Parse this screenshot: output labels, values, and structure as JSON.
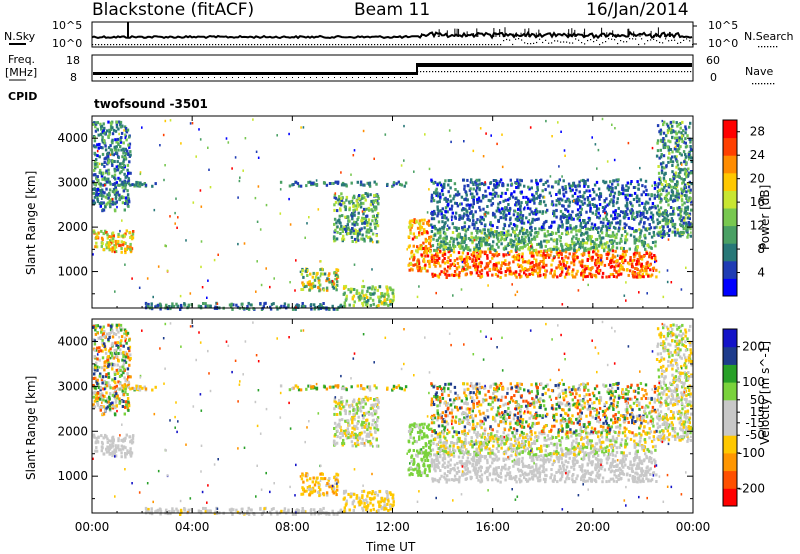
{
  "header": {
    "title": "Blackstone (fitACF)",
    "beam": "Beam 11",
    "date": "16/Jan/2014"
  },
  "panels": {
    "nsky_label": "N.Sky",
    "nsearch_label": "N.Search",
    "noise_ticks": [
      "10^5",
      "10^0"
    ],
    "freq_label_1": "Freq.",
    "freq_label_2": "[MHz]",
    "freq_ticks": [
      "18",
      "8"
    ],
    "nave_label": "Nave",
    "nave_ticks": [
      "60",
      "0"
    ],
    "cpid_label": "CPID",
    "cpid_value": "twofsound  -3501"
  },
  "chart_data": [
    {
      "type": "heatmap",
      "name": "power",
      "xlabel": "Time UT",
      "ylabel": "Slant Range [km]",
      "x_ticks": [
        "00:00",
        "04:00",
        "08:00",
        "12:00",
        "16:00",
        "20:00",
        "00:00"
      ],
      "y_ticks": [
        1000,
        2000,
        3000,
        4000
      ],
      "ylim": [
        180,
        4500
      ],
      "xlim_hours": [
        0,
        24
      ],
      "colorbar_label": "Power [dB]",
      "colorbar_ticks": [
        28,
        24,
        20,
        16,
        12,
        8,
        4
      ],
      "colorbar_range": [
        0,
        30
      ],
      "colors": [
        "#0000ff",
        "#1f3cb4",
        "#287878",
        "#4aa064",
        "#78c850",
        "#c8e632",
        "#ffc800",
        "#ff8c00",
        "#ff4000",
        "#ff0000"
      ],
      "regions": [
        {
          "t": [
            0.0,
            1.6
          ],
          "r": [
            1450,
            1950
          ],
          "v": [
            12,
            26
          ]
        },
        {
          "t": [
            0.0,
            1.5
          ],
          "r": [
            2400,
            4400
          ],
          "v": [
            2,
            14
          ]
        },
        {
          "t": [
            0.0,
            2.5
          ],
          "r": [
            2950,
            3050
          ],
          "v": [
            4,
            14
          ]
        },
        {
          "t": [
            7.5,
            12.5
          ],
          "r": [
            2950,
            3050
          ],
          "v": [
            4,
            12
          ]
        },
        {
          "t": [
            8.3,
            9.8
          ],
          "r": [
            600,
            1100
          ],
          "v": [
            6,
            24
          ]
        },
        {
          "t": [
            9.6,
            11.4
          ],
          "r": [
            1700,
            2800
          ],
          "v": [
            4,
            18
          ]
        },
        {
          "t": [
            10.0,
            12.0
          ],
          "r": [
            250,
            700
          ],
          "v": [
            8,
            20
          ]
        },
        {
          "t": [
            2.0,
            10.0
          ],
          "r": [
            180,
            320
          ],
          "v": [
            3,
            12
          ]
        },
        {
          "t": [
            12.6,
            13.5
          ],
          "r": [
            1000,
            2200
          ],
          "v": [
            16,
            28
          ]
        },
        {
          "t": [
            13.5,
            22.5
          ],
          "r": [
            900,
            1500
          ],
          "v": [
            18,
            30
          ]
        },
        {
          "t": [
            13.5,
            22.5
          ],
          "r": [
            1500,
            2000
          ],
          "v": [
            6,
            16
          ]
        },
        {
          "t": [
            13.5,
            22.5
          ],
          "r": [
            2000,
            3100
          ],
          "v": [
            2,
            10
          ]
        },
        {
          "t": [
            22.5,
            23.9
          ],
          "r": [
            1800,
            4400
          ],
          "v": [
            4,
            16
          ]
        }
      ]
    },
    {
      "type": "heatmap",
      "name": "velocity",
      "xlabel": "Time UT",
      "ylabel": "Slant Range [km]",
      "x_ticks": [
        "00:00",
        "04:00",
        "08:00",
        "12:00",
        "16:00",
        "20:00",
        "00:00"
      ],
      "y_ticks": [
        1000,
        2000,
        3000,
        4000
      ],
      "ylim": [
        180,
        4500
      ],
      "xlim_hours": [
        0,
        24
      ],
      "colorbar_label": "Velocity [m s^-1]",
      "colorbar_ticks": [
        200,
        100,
        50,
        15,
        -15,
        -50,
        -100,
        -200
      ],
      "colorbar_range": [
        -250,
        250
      ],
      "colors": [
        "#ff0000",
        "#ff5000",
        "#ff9600",
        "#ffc800",
        "#c8c8c8",
        "#c8c8c8",
        "#7ad23c",
        "#28a028",
        "#1e3c8c",
        "#1414c8"
      ],
      "regions": [
        {
          "t": [
            0.0,
            1.6
          ],
          "r": [
            1450,
            1950
          ],
          "v": [
            -15,
            15
          ]
        },
        {
          "t": [
            0.0,
            1.5
          ],
          "r": [
            2400,
            4400
          ],
          "v": [
            -200,
            200
          ]
        },
        {
          "t": [
            0.0,
            2.5
          ],
          "r": [
            2950,
            3050
          ],
          "v": [
            -150,
            150
          ]
        },
        {
          "t": [
            7.5,
            12.5
          ],
          "r": [
            2950,
            3050
          ],
          "v": [
            -150,
            150
          ]
        },
        {
          "t": [
            8.3,
            9.8
          ],
          "r": [
            600,
            1100
          ],
          "v": [
            -120,
            -40
          ]
        },
        {
          "t": [
            9.6,
            11.4
          ],
          "r": [
            1700,
            2800
          ],
          "v": [
            -100,
            100
          ]
        },
        {
          "t": [
            10.0,
            12.0
          ],
          "r": [
            250,
            700
          ],
          "v": [
            -90,
            -30
          ]
        },
        {
          "t": [
            2.0,
            10.0
          ],
          "r": [
            180,
            320
          ],
          "v": [
            -60,
            40
          ]
        },
        {
          "t": [
            12.6,
            13.5
          ],
          "r": [
            1000,
            2200
          ],
          "v": [
            40,
            100
          ]
        },
        {
          "t": [
            13.5,
            22.5
          ],
          "r": [
            900,
            1500
          ],
          "v": [
            -15,
            15
          ]
        },
        {
          "t": [
            13.5,
            22.5
          ],
          "r": [
            1500,
            2000
          ],
          "v": [
            -100,
            100
          ]
        },
        {
          "t": [
            13.5,
            22.5
          ],
          "r": [
            2000,
            3100
          ],
          "v": [
            -200,
            200
          ]
        },
        {
          "t": [
            22.5,
            23.9
          ],
          "r": [
            1800,
            4400
          ],
          "v": [
            -100,
            100
          ]
        }
      ]
    }
  ]
}
